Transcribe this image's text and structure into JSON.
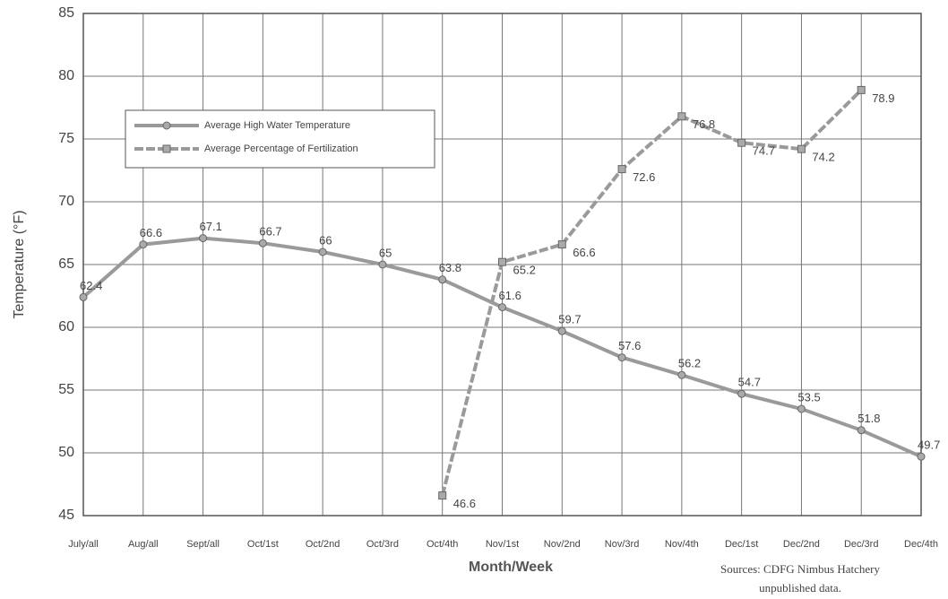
{
  "chart_data": {
    "type": "line",
    "y_label": "Temperature (°F)",
    "x_label": "Month/Week",
    "source": [
      "Sources:  CDFG Nimbus Hatchery",
      "unpublished data."
    ],
    "categories": [
      "July/all",
      "Aug/all",
      "Sept/all",
      "Oct/1st",
      "Oct/2nd",
      "Oct/3rd",
      "Oct/4th",
      "Nov/1st",
      "Nov/2nd",
      "Nov/3rd",
      "Nov/4th",
      "Dec/1st",
      "Dec/2nd",
      "Dec/3rd",
      "Dec/4th"
    ],
    "series": [
      {
        "name": "Average High Water Temperature",
        "color": "#9a9a9a",
        "marker": "circle",
        "values": [
          62.4,
          66.6,
          67.1,
          66.7,
          66,
          65,
          63.8,
          61.6,
          59.7,
          57.6,
          56.2,
          54.7,
          53.5,
          51.8,
          49.7
        ]
      },
      {
        "name": "Average Percentage of Fertilization",
        "color": "#9a9a9a",
        "marker": "square",
        "values": [
          null,
          null,
          null,
          null,
          null,
          null,
          46.6,
          65.2,
          66.6,
          72.6,
          76.8,
          74.7,
          74.2,
          78.9,
          null
        ]
      }
    ],
    "ylim": [
      45,
      85
    ],
    "yticks": [
      45,
      50,
      55,
      60,
      65,
      70,
      75,
      80,
      85
    ],
    "grid": true
  }
}
